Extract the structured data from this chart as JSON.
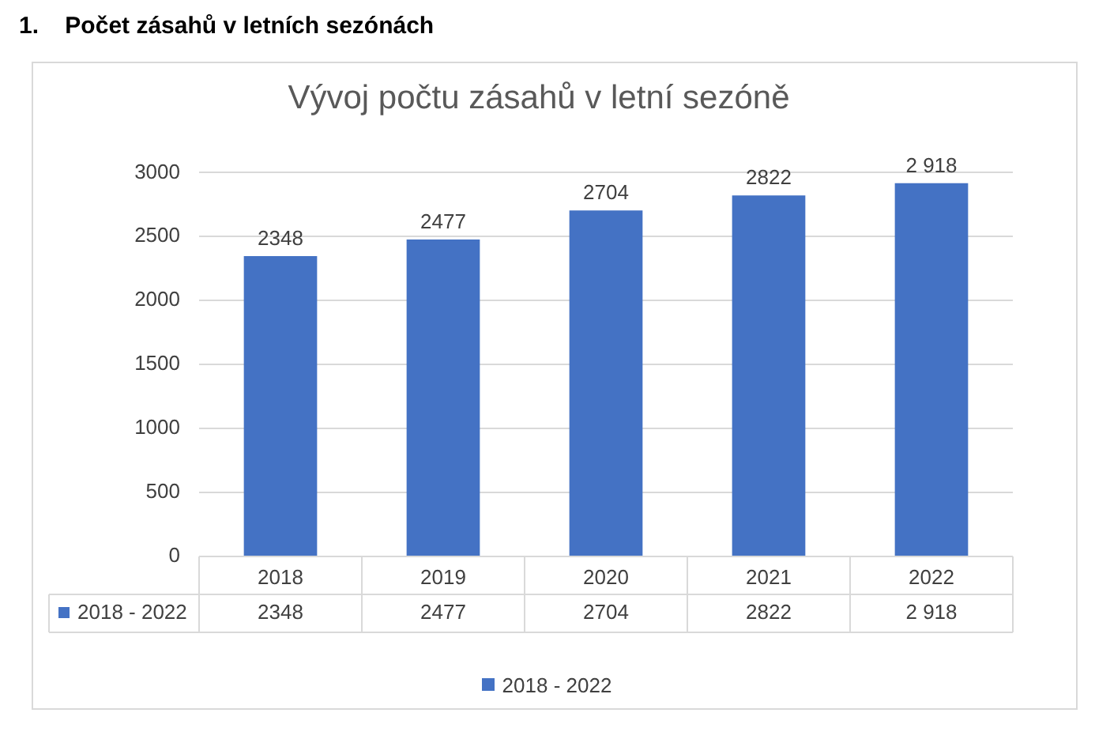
{
  "chart_data": {
    "type": "bar",
    "title": "Vývoj počtu zásahů v letní sezóně",
    "annotations": [
      "1.    Počet zásahů v letních sezónách"
    ],
    "categories": [
      "2018",
      "2019",
      "2020",
      "2021",
      "2022"
    ],
    "series": [
      {
        "name": "2018 - 2022",
        "color": "#4472c4",
        "values": [
          2348,
          2477,
          2704,
          2822,
          2918
        ],
        "value_labels": [
          "2348",
          "2477",
          "2704",
          "2822",
          "2 918"
        ]
      }
    ],
    "ylim": [
      0,
      3000
    ],
    "yticks": [
      0,
      500,
      1000,
      1500,
      2000,
      2500,
      3000
    ],
    "grid": "y",
    "legend": "bottom"
  }
}
